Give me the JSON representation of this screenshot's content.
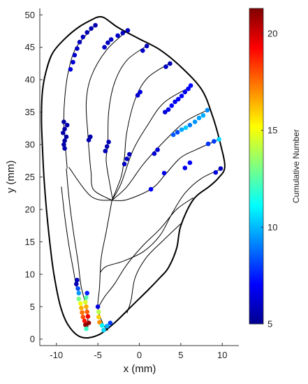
{
  "chart_data": {
    "type": "scatter",
    "xlabel": "x (mm)",
    "ylabel": "y (mm)",
    "xlim": [
      -12,
      12
    ],
    "ylim": [
      -1,
      51
    ],
    "xticks": [
      -10,
      -5,
      0,
      5,
      10
    ],
    "yticks": [
      0,
      5,
      10,
      15,
      20,
      25,
      30,
      35,
      40,
      45,
      50
    ],
    "grid": false,
    "colormap": "jet",
    "colorbar": {
      "label": "Cumulative Number",
      "limits": [
        5,
        21.3
      ],
      "ticks": [
        5,
        10,
        15,
        20
      ],
      "placement": "right"
    },
    "outline": [
      [
        -5.2,
        49.6
      ],
      [
        -4.3,
        49.6
      ],
      [
        -2.5,
        48.0
      ],
      [
        0.0,
        46.3
      ],
      [
        2.5,
        44.6
      ],
      [
        5.0,
        42.0
      ],
      [
        7.5,
        38.5
      ],
      [
        8.8,
        34.5
      ],
      [
        9.8,
        30.0
      ],
      [
        10.3,
        26.5
      ],
      [
        9.5,
        24.8
      ],
      [
        8.5,
        23.6
      ],
      [
        6.5,
        21.5
      ],
      [
        5.0,
        17.5
      ],
      [
        4.5,
        14.0
      ],
      [
        3.5,
        11.0
      ],
      [
        2.5,
        9.5
      ],
      [
        1.0,
        7.5
      ],
      [
        -1.0,
        5.0
      ],
      [
        -3.0,
        2.5
      ],
      [
        -5.0,
        0.6
      ],
      [
        -7.0,
        0.3
      ],
      [
        -8.5,
        2.0
      ],
      [
        -9.5,
        5.0
      ],
      [
        -10.3,
        10.0
      ],
      [
        -10.8,
        15.0
      ],
      [
        -11.2,
        20.0
      ],
      [
        -11.5,
        25.0
      ],
      [
        -11.7,
        30.0
      ],
      [
        -11.8,
        34.0
      ],
      [
        -11.7,
        38.0
      ],
      [
        -11.3,
        41.0
      ],
      [
        -10.5,
        44.0
      ],
      [
        -9.0,
        46.3
      ],
      [
        -7.2,
        48.2
      ],
      [
        -5.2,
        49.6
      ]
    ],
    "lines": [
      [
        [
          -5.2,
          48.6
        ],
        [
          -7.6,
          45.0
        ],
        [
          -8.6,
          41.0
        ],
        [
          -9.0,
          37.0
        ],
        [
          -9.1,
          33.5
        ],
        [
          -8.9,
          29.5
        ],
        [
          -8.7,
          26.3
        ]
      ],
      [
        [
          -1.5,
          47.5
        ],
        [
          -4.0,
          44.5
        ],
        [
          -5.8,
          40.5
        ],
        [
          -6.4,
          36.5
        ],
        [
          -6.2,
          31.5
        ],
        [
          -6.0,
          28.0
        ],
        [
          -5.8,
          25.5
        ]
      ],
      [
        [
          1.0,
          45.3
        ],
        [
          -1.5,
          43.0
        ],
        [
          -3.0,
          39.5
        ],
        [
          -3.7,
          35.0
        ],
        [
          -3.8,
          30.0
        ],
        [
          -4.0,
          27.5
        ],
        [
          -3.5,
          23.5
        ],
        [
          -3.2,
          21.5
        ]
      ],
      [
        [
          3.6,
          42.5
        ],
        [
          1.0,
          40.3
        ],
        [
          -0.5,
          37.0
        ],
        [
          -1.5,
          32.0
        ],
        [
          -1.8,
          28.0
        ],
        [
          -2.2,
          25.0
        ],
        [
          -3.3,
          21.4
        ]
      ],
      [
        [
          6.3,
          39.0
        ],
        [
          3.0,
          36.5
        ],
        [
          1.0,
          33.0
        ],
        [
          -0.8,
          29.0
        ],
        [
          -2.2,
          24.0
        ],
        [
          -3.3,
          21.4
        ]
      ],
      [
        [
          8.2,
          35.3
        ],
        [
          5.5,
          33.5
        ],
        [
          3.0,
          30.5
        ],
        [
          0.5,
          27.0
        ],
        [
          -1.5,
          23.5
        ],
        [
          -3.3,
          21.4
        ]
      ],
      [
        [
          9.6,
          30.8
        ],
        [
          7.0,
          29.3
        ],
        [
          5.0,
          28.0
        ],
        [
          3.2,
          25.5
        ],
        [
          1.5,
          23.2
        ],
        [
          -1.5,
          21.5
        ],
        [
          -3.3,
          21.4
        ]
      ],
      [
        [
          10.0,
          26.3
        ],
        [
          7.5,
          24.8
        ],
        [
          5.5,
          22.5
        ],
        [
          4.0,
          19.5
        ],
        [
          2.5,
          16.0
        ],
        [
          0.5,
          13.5
        ],
        [
          -2.0,
          12.0
        ],
        [
          -4.0,
          11.2
        ],
        [
          -4.7,
          10.3
        ]
      ],
      [
        [
          6.5,
          21.8
        ],
        [
          4.5,
          20.0
        ],
        [
          2.5,
          17.0
        ],
        [
          0.5,
          14.5
        ],
        [
          -1.5,
          11.5
        ],
        [
          -3.0,
          8.5
        ],
        [
          -4.2,
          6.5
        ],
        [
          -4.9,
          5.0
        ]
      ],
      [
        [
          5.0,
          17.8
        ],
        [
          2.7,
          15.0
        ],
        [
          0.8,
          12.5
        ],
        [
          -0.5,
          9.5
        ],
        [
          -1.0,
          6.0
        ],
        [
          -1.5,
          4.0
        ]
      ],
      [
        [
          -3.3,
          21.4
        ],
        [
          -4.0,
          16.5
        ],
        [
          -4.6,
          12.5
        ],
        [
          -4.8,
          8.0
        ],
        [
          -5.0,
          4.8
        ],
        [
          -4.4,
          2.4
        ],
        [
          -3.8,
          1.3
        ]
      ],
      [
        [
          -3.3,
          21.4
        ],
        [
          -5.8,
          22.0
        ],
        [
          -8.5,
          26.5
        ]
      ],
      [
        [
          -3.3,
          21.4
        ],
        [
          -5.5,
          23.0
        ],
        [
          -5.8,
          25.5
        ]
      ],
      [
        [
          -8.8,
          26.3
        ],
        [
          -8.5,
          22.0
        ],
        [
          -8.0,
          17.0
        ],
        [
          -7.4,
          12.0
        ],
        [
          -7.0,
          8.0
        ],
        [
          -6.3,
          4.5
        ],
        [
          -6.2,
          1.8
        ]
      ],
      [
        [
          -9.4,
          23.5
        ],
        [
          -9.0,
          19.0
        ],
        [
          -8.5,
          14.5
        ],
        [
          -8.0,
          11.0
        ],
        [
          -7.6,
          8.0
        ]
      ]
    ],
    "points": [
      {
        "x": -5.3,
        "y": 48.4,
        "v": 5.8
      },
      {
        "x": -5.8,
        "y": 47.9,
        "v": 5.8
      },
      {
        "x": -6.3,
        "y": 47.3,
        "v": 5.9
      },
      {
        "x": -6.8,
        "y": 46.6,
        "v": 6.0
      },
      {
        "x": -7.2,
        "y": 45.8,
        "v": 6.0
      },
      {
        "x": -7.5,
        "y": 44.8,
        "v": 6.1
      },
      {
        "x": -7.8,
        "y": 43.8,
        "v": 6.2
      },
      {
        "x": -8.0,
        "y": 42.7,
        "v": 6.3
      },
      {
        "x": -8.3,
        "y": 41.6,
        "v": 6.4
      },
      {
        "x": -1.4,
        "y": 47.6,
        "v": 6.1
      },
      {
        "x": -2.0,
        "y": 47.2,
        "v": 6.0
      },
      {
        "x": -2.6,
        "y": 46.8,
        "v": 6.2
      },
      {
        "x": -3.4,
        "y": 46.2,
        "v": 6.1
      },
      {
        "x": -3.8,
        "y": 45.7,
        "v": 6.0
      },
      {
        "x": -4.2,
        "y": 45.0,
        "v": 6.2
      },
      {
        "x": 0.9,
        "y": 45.2,
        "v": 6.0
      },
      {
        "x": 0.4,
        "y": 44.5,
        "v": 6.1
      },
      {
        "x": 3.7,
        "y": 42.5,
        "v": 5.9
      },
      {
        "x": 3.2,
        "y": 42.0,
        "v": 6.1
      },
      {
        "x": 0.1,
        "y": 38.1,
        "v": 6.5
      },
      {
        "x": -0.2,
        "y": 37.6,
        "v": 6.3
      },
      {
        "x": 6.2,
        "y": 39.1,
        "v": 7.2
      },
      {
        "x": 5.9,
        "y": 38.6,
        "v": 7.0
      },
      {
        "x": 5.5,
        "y": 38.1,
        "v": 6.8
      },
      {
        "x": 5.1,
        "y": 37.5,
        "v": 7.1
      },
      {
        "x": 4.7,
        "y": 37.0,
        "v": 6.9
      },
      {
        "x": 4.3,
        "y": 36.6,
        "v": 6.8
      },
      {
        "x": 3.9,
        "y": 36.0,
        "v": 7.0
      },
      {
        "x": 3.5,
        "y": 35.4,
        "v": 6.7
      },
      {
        "x": 3.1,
        "y": 35.0,
        "v": 6.5
      },
      {
        "x": 8.2,
        "y": 35.3,
        "v": 9.3
      },
      {
        "x": 7.7,
        "y": 34.5,
        "v": 9.8
      },
      {
        "x": 7.2,
        "y": 34.1,
        "v": 9.6
      },
      {
        "x": 6.7,
        "y": 33.5,
        "v": 9.4
      },
      {
        "x": 6.1,
        "y": 33.0,
        "v": 9.0
      },
      {
        "x": 5.6,
        "y": 32.6,
        "v": 10.3
      },
      {
        "x": 5.1,
        "y": 32.3,
        "v": 9.7
      },
      {
        "x": 4.6,
        "y": 31.9,
        "v": 8.2
      },
      {
        "x": 4.1,
        "y": 31.5,
        "v": 8.5
      },
      {
        "x": 9.6,
        "y": 30.8,
        "v": 10.5
      },
      {
        "x": 9.0,
        "y": 30.5,
        "v": 8.0
      },
      {
        "x": 8.3,
        "y": 30.1,
        "v": 7.8
      },
      {
        "x": 9.8,
        "y": 26.3,
        "v": 6.0
      },
      {
        "x": 9.2,
        "y": 25.7,
        "v": 6.5
      },
      {
        "x": 6.1,
        "y": 27.2,
        "v": 7.0
      },
      {
        "x": 5.5,
        "y": 26.4,
        "v": 6.8
      },
      {
        "x": -9.1,
        "y": 33.5,
        "v": 5.6
      },
      {
        "x": -8.7,
        "y": 33.0,
        "v": 5.7
      },
      {
        "x": -9.0,
        "y": 32.4,
        "v": 5.6
      },
      {
        "x": -9.2,
        "y": 31.8,
        "v": 5.6
      },
      {
        "x": -8.8,
        "y": 31.2,
        "v": 5.6
      },
      {
        "x": -9.0,
        "y": 30.6,
        "v": 5.6
      },
      {
        "x": -9.1,
        "y": 30.0,
        "v": 5.7
      },
      {
        "x": -9.0,
        "y": 29.4,
        "v": 5.7
      },
      {
        "x": -5.9,
        "y": 31.2,
        "v": 5.7
      },
      {
        "x": -6.1,
        "y": 30.7,
        "v": 5.8
      },
      {
        "x": -3.7,
        "y": 30.4,
        "v": 5.9
      },
      {
        "x": -3.9,
        "y": 29.7,
        "v": 5.7
      },
      {
        "x": -4.1,
        "y": 29.0,
        "v": 5.9
      },
      {
        "x": -1.2,
        "y": 28.5,
        "v": 6.0
      },
      {
        "x": -1.5,
        "y": 27.8,
        "v": 6.1
      },
      {
        "x": -1.8,
        "y": 27.0,
        "v": 6.0
      },
      {
        "x": 2.2,
        "y": 29.2,
        "v": 6.5
      },
      {
        "x": 1.8,
        "y": 28.6,
        "v": 6.3
      },
      {
        "x": 3.0,
        "y": 25.6,
        "v": 6.6
      },
      {
        "x": 1.4,
        "y": 23.1,
        "v": 7.0
      },
      {
        "x": -7.5,
        "y": 9.1,
        "v": 6.0
      },
      {
        "x": -7.6,
        "y": 8.5,
        "v": 5.8
      },
      {
        "x": -7.4,
        "y": 7.8,
        "v": 8.3
      },
      {
        "x": -7.3,
        "y": 7.1,
        "v": 9.5
      },
      {
        "x": -7.3,
        "y": 6.2,
        "v": 13.0
      },
      {
        "x": -7.1,
        "y": 5.5,
        "v": 15.0
      },
      {
        "x": -7.0,
        "y": 4.8,
        "v": 16.5
      },
      {
        "x": -6.9,
        "y": 4.1,
        "v": 17.5
      },
      {
        "x": -6.8,
        "y": 3.4,
        "v": 18.0
      },
      {
        "x": -6.6,
        "y": 2.8,
        "v": 19.0
      },
      {
        "x": -6.5,
        "y": 2.2,
        "v": 21.0
      },
      {
        "x": -6.4,
        "y": 1.6,
        "v": 12.0
      },
      {
        "x": -6.3,
        "y": 7.1,
        "v": 7.5
      },
      {
        "x": -6.4,
        "y": 6.4,
        "v": 12.5
      },
      {
        "x": -6.5,
        "y": 5.7,
        "v": 14.5
      },
      {
        "x": -6.4,
        "y": 5.0,
        "v": 16.5
      },
      {
        "x": -6.3,
        "y": 4.2,
        "v": 17.8
      },
      {
        "x": -6.2,
        "y": 3.5,
        "v": 19.5
      },
      {
        "x": -6.1,
        "y": 2.5,
        "v": 21.0
      },
      {
        "x": -5.0,
        "y": 5.0,
        "v": 6.5
      },
      {
        "x": -4.9,
        "y": 4.2,
        "v": 14.0
      },
      {
        "x": -4.9,
        "y": 3.4,
        "v": 16.0
      },
      {
        "x": -4.8,
        "y": 2.6,
        "v": 17.0
      },
      {
        "x": -4.5,
        "y": 2.1,
        "v": 11.0
      },
      {
        "x": -4.3,
        "y": 1.4,
        "v": 10.5
      },
      {
        "x": -3.9,
        "y": 2.0,
        "v": 9.8
      },
      {
        "x": -3.5,
        "y": 2.5,
        "v": 8.0
      }
    ]
  }
}
